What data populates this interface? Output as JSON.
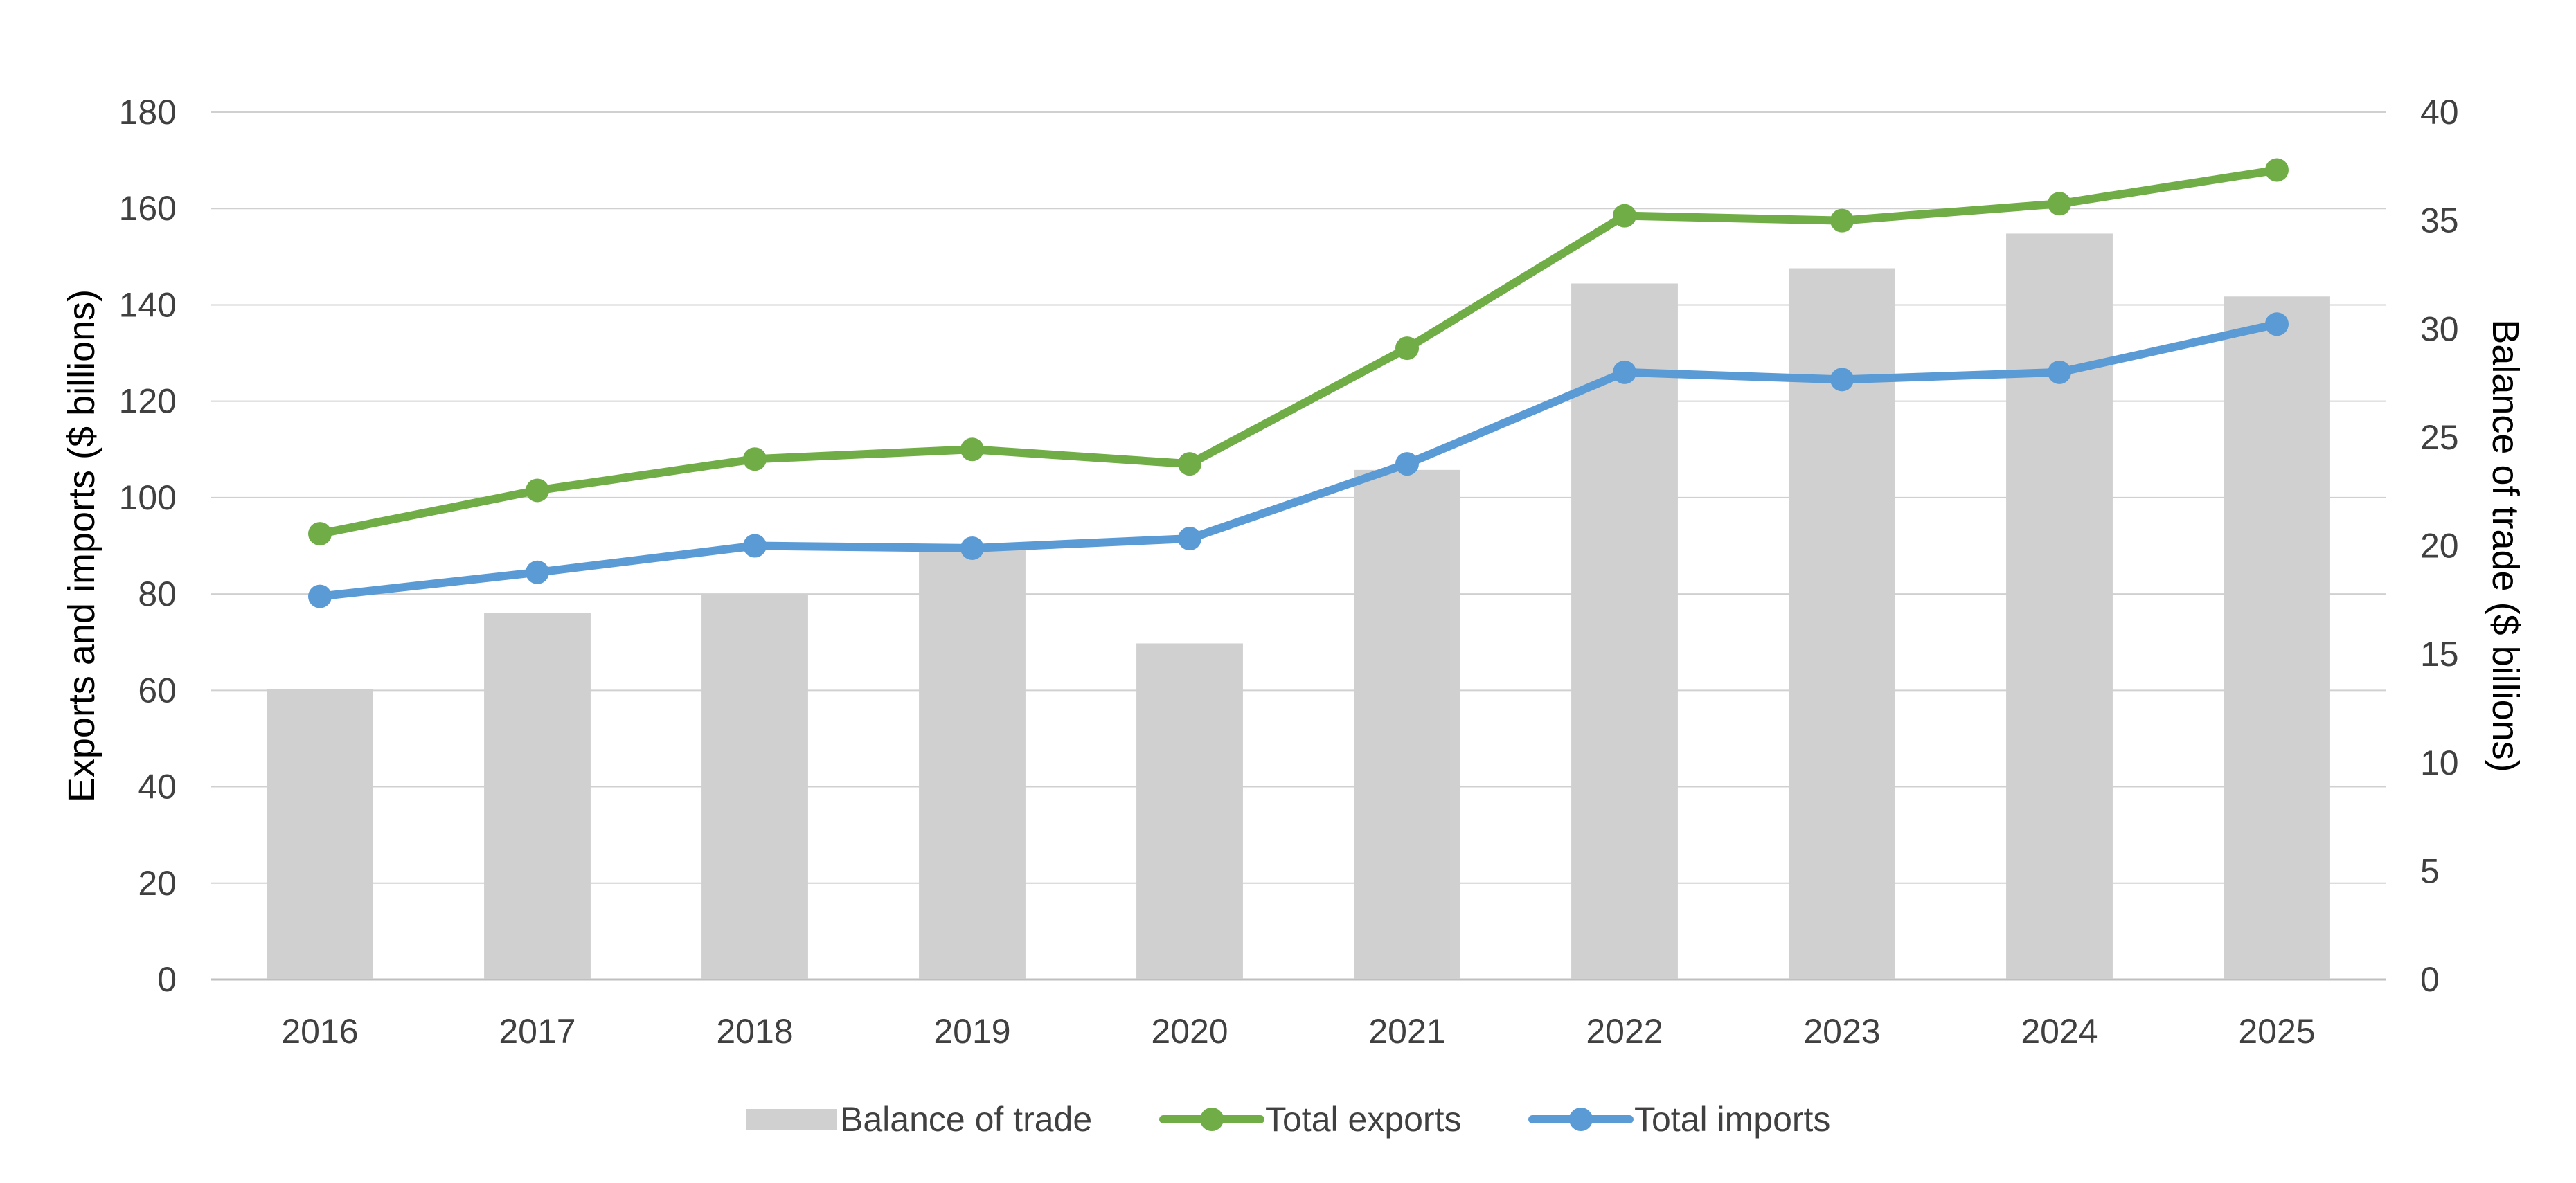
{
  "chart_data": {
    "type": "bar",
    "categories": [
      "2016",
      "2017",
      "2018",
      "2019",
      "2020",
      "2021",
      "2022",
      "2023",
      "2024",
      "2025"
    ],
    "series": [
      {
        "name": "Balance of trade",
        "kind": "bar",
        "axis": "right",
        "color": "#d0d0d0",
        "values": [
          13.4,
          16.9,
          17.8,
          19.8,
          15.5,
          23.5,
          32.1,
          32.8,
          34.4,
          31.5
        ]
      },
      {
        "name": "Total exports",
        "kind": "line",
        "axis": "left",
        "color": "#70ad47",
        "values": [
          92.5,
          101.5,
          108,
          110,
          107,
          131,
          158.5,
          157.5,
          161,
          168
        ]
      },
      {
        "name": "Total imports",
        "kind": "line",
        "axis": "left",
        "color": "#5b9bd5",
        "values": [
          79.5,
          84.5,
          90,
          89.5,
          91.5,
          107,
          126,
          124.5,
          126,
          136
        ]
      }
    ],
    "ylabel": "Exports and imports ($ billions)",
    "y2label": "Balance of trade ($ billions)",
    "ylim": [
      0,
      180
    ],
    "yticks": [
      0,
      20,
      40,
      60,
      80,
      100,
      120,
      140,
      160,
      180
    ],
    "y2lim": [
      0,
      40
    ],
    "y2ticks": [
      0,
      5,
      10,
      15,
      20,
      25,
      30,
      35,
      40
    ],
    "grid": true,
    "legend": "bottom"
  }
}
